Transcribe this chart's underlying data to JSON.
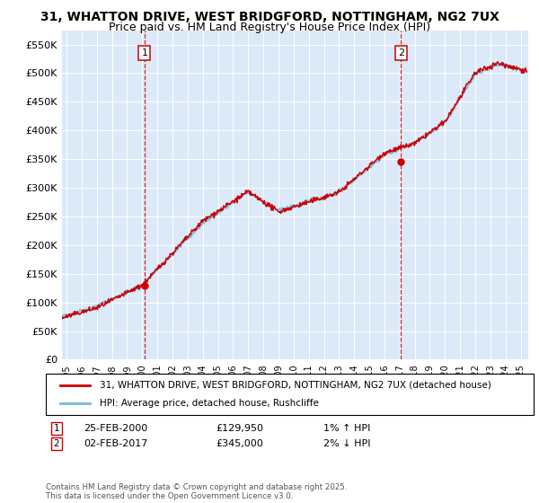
{
  "title1": "31, WHATTON DRIVE, WEST BRIDGFORD, NOTTINGHAM, NG2 7UX",
  "title2": "Price paid vs. HM Land Registry's House Price Index (HPI)",
  "ylabel_ticks": [
    "£0",
    "£50K",
    "£100K",
    "£150K",
    "£200K",
    "£250K",
    "£300K",
    "£350K",
    "£400K",
    "£450K",
    "£500K",
    "£550K"
  ],
  "ytick_values": [
    0,
    50000,
    100000,
    150000,
    200000,
    250000,
    300000,
    350000,
    400000,
    450000,
    500000,
    550000
  ],
  "ylim": [
    0,
    575000
  ],
  "xlim_start": 1994.7,
  "xlim_end": 2025.5,
  "sale1_x": 2000.15,
  "sale1_y": 129950,
  "sale2_x": 2017.09,
  "sale2_y": 345000,
  "sale1_label": "25-FEB-2000",
  "sale1_price": "£129,950",
  "sale1_hpi": "1% ↑ HPI",
  "sale2_label": "02-FEB-2017",
  "sale2_price": "£345,000",
  "sale2_hpi": "2% ↓ HPI",
  "legend_line1": "31, WHATTON DRIVE, WEST BRIDGFORD, NOTTINGHAM, NG2 7UX (detached house)",
  "legend_line2": "HPI: Average price, detached house, Rushcliffe",
  "footer": "Contains HM Land Registry data © Crown copyright and database right 2025.\nThis data is licensed under the Open Government Licence v3.0.",
  "bg_color": "#dce9f8",
  "hpi_color": "#7ab8d9",
  "price_color": "#cc0000",
  "vline_color": "#cc0000",
  "marker_color": "#cc0000",
  "box_color": "#cc0000",
  "title_fontsize": 10,
  "subtitle_fontsize": 9
}
